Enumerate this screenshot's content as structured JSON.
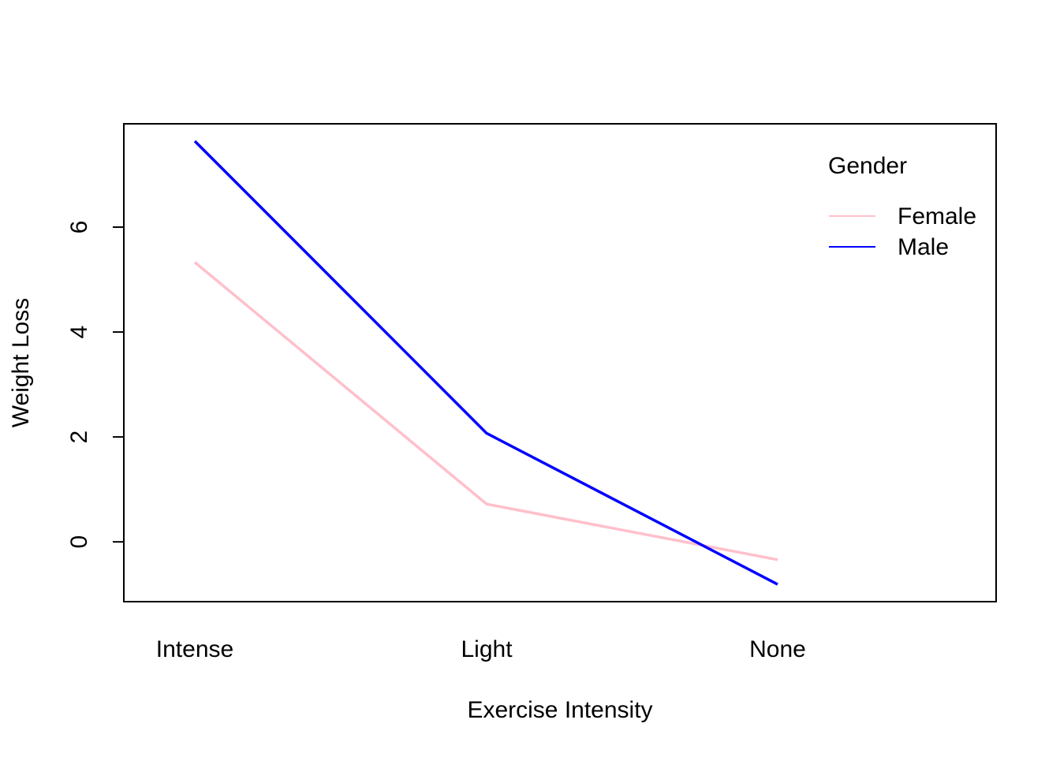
{
  "chart_data": {
    "type": "line",
    "title": "",
    "xlabel": "Exercise Intensity",
    "ylabel": "Weight Loss",
    "categories": [
      "Intense",
      "Light",
      "None"
    ],
    "series": [
      {
        "name": "Female",
        "color": "#FFC0CB",
        "values": [
          5.33,
          0.72,
          -0.34
        ]
      },
      {
        "name": "Male",
        "color": "#0000FF",
        "values": [
          7.64,
          2.07,
          -0.81
        ]
      }
    ],
    "yticks": [
      0,
      2,
      4,
      6
    ],
    "ylim": [
      -1.14,
      7.97
    ],
    "grid": false,
    "legend": {
      "title": "Gender",
      "position": "top-right"
    }
  }
}
